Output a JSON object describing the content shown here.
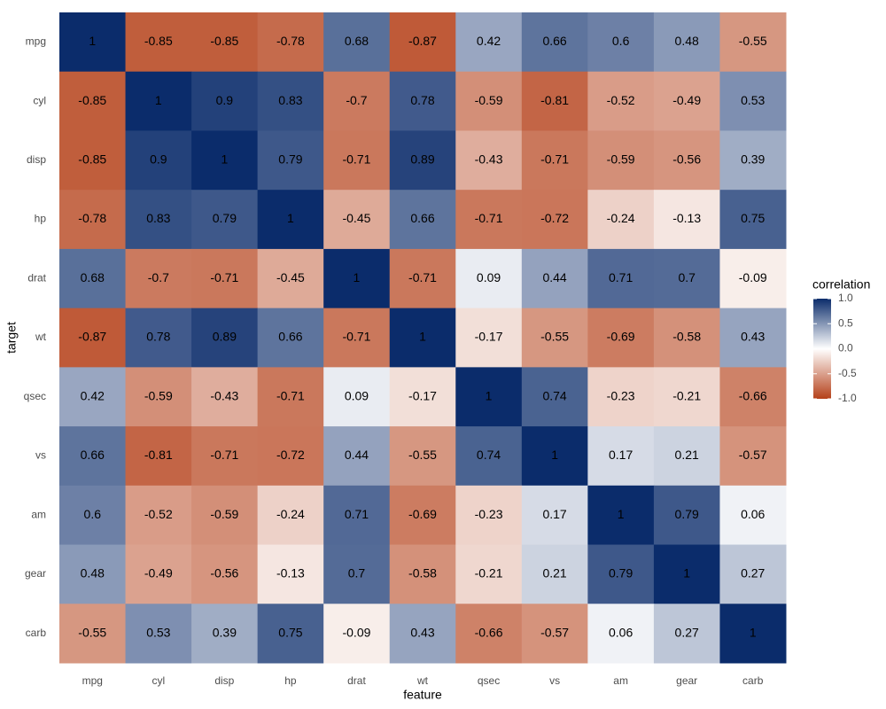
{
  "chart_data": {
    "type": "heatmap",
    "x_label": "feature",
    "y_label": "target",
    "x_categories": [
      "mpg",
      "cyl",
      "disp",
      "hp",
      "drat",
      "wt",
      "qsec",
      "vs",
      "am",
      "gear",
      "carb"
    ],
    "y_categories": [
      "mpg",
      "cyl",
      "disp",
      "hp",
      "drat",
      "wt",
      "qsec",
      "vs",
      "am",
      "gear",
      "carb"
    ],
    "values": [
      [
        1,
        -0.85,
        -0.85,
        -0.78,
        0.68,
        -0.87,
        0.42,
        0.66,
        0.6,
        0.48,
        -0.55
      ],
      [
        -0.85,
        1,
        0.9,
        0.83,
        -0.7,
        0.78,
        -0.59,
        -0.81,
        -0.52,
        -0.49,
        0.53
      ],
      [
        -0.85,
        0.9,
        1,
        0.79,
        -0.71,
        0.89,
        -0.43,
        -0.71,
        -0.59,
        -0.56,
        0.39
      ],
      [
        -0.78,
        0.83,
        0.79,
        1,
        -0.45,
        0.66,
        -0.71,
        -0.72,
        -0.24,
        -0.13,
        0.75
      ],
      [
        0.68,
        -0.7,
        -0.71,
        -0.45,
        1,
        -0.71,
        0.09,
        0.44,
        0.71,
        0.7,
        -0.09
      ],
      [
        -0.87,
        0.78,
        0.89,
        0.66,
        -0.71,
        1,
        -0.17,
        -0.55,
        -0.69,
        -0.58,
        0.43
      ],
      [
        0.42,
        -0.59,
        -0.43,
        -0.71,
        0.09,
        -0.17,
        1,
        0.74,
        -0.23,
        -0.21,
        -0.66
      ],
      [
        0.66,
        -0.81,
        -0.71,
        -0.72,
        0.44,
        -0.55,
        0.74,
        1,
        0.17,
        0.21,
        -0.57
      ],
      [
        0.6,
        -0.52,
        -0.59,
        -0.24,
        0.71,
        -0.69,
        -0.23,
        0.17,
        1,
        0.79,
        0.06
      ],
      [
        0.48,
        -0.49,
        -0.56,
        -0.13,
        0.7,
        -0.58,
        -0.21,
        0.21,
        0.79,
        1,
        0.27
      ],
      [
        -0.55,
        0.53,
        0.39,
        0.75,
        -0.09,
        0.43,
        -0.66,
        -0.57,
        0.06,
        0.27,
        1
      ]
    ],
    "legend_title": "correlation",
    "clim": [
      -1,
      1
    ],
    "cticks": [
      {
        "value": 1,
        "label": "1.0"
      },
      {
        "value": 0.5,
        "label": "0.5"
      },
      {
        "value": 0,
        "label": "0.0"
      },
      {
        "value": -0.5,
        "label": "-0.5"
      },
      {
        "value": -1,
        "label": "-1.0"
      }
    ],
    "colors": {
      "low": "#b5411a",
      "mid": "#ffffff",
      "high": "#0b2c6b"
    }
  }
}
